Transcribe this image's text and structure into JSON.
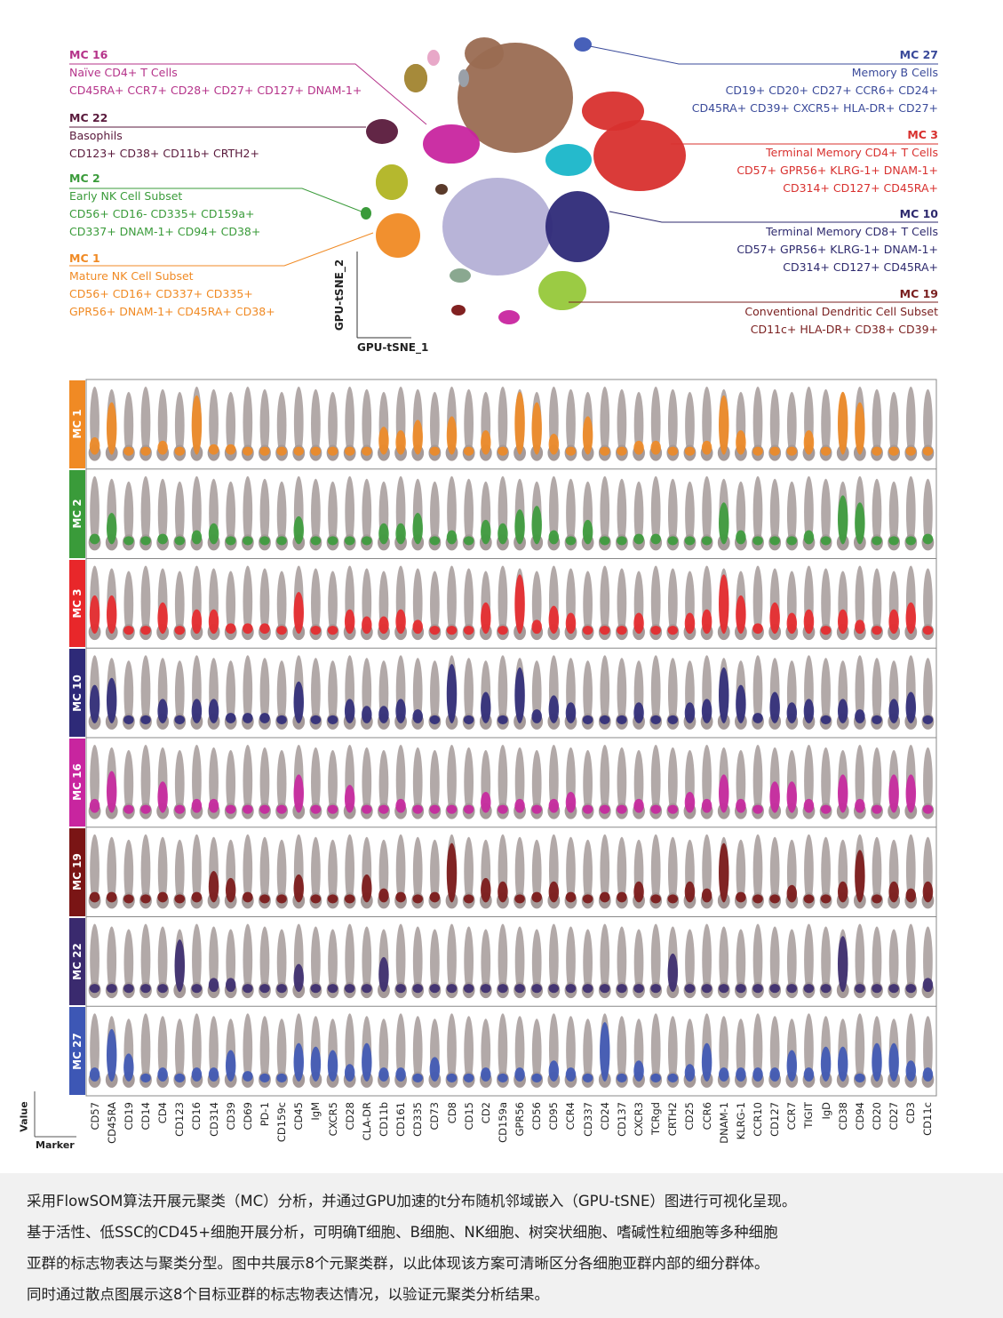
{
  "tsne": {
    "xlabel": "GPU-tSNE_1",
    "ylabel": "GPU-tSNE_2",
    "annotations_left": [
      {
        "id": "MC 16",
        "lines": [
          "Naïve CD4+ T Cells",
          "CD45RA+ CCR7+ CD28+ CD27+ CD127+ DNAM-1+"
        ],
        "title_color": "#b5338a",
        "color": "#b5338a"
      },
      {
        "id": "MC 22",
        "lines": [
          "Basophils",
          "CD123+ CD38+ CD11b+ CRTH2+"
        ],
        "title_color": "#5a1a3c",
        "color": "#5a1a3c"
      },
      {
        "id": "MC 2",
        "lines": [
          "Early NK Cell Subset",
          "CD56+ CD16- CD335+ CD159a+",
          "CD337+ DNAM-1+ CD94+ CD38+"
        ],
        "title_color": "#3a9b3a",
        "color": "#3a9b3a"
      },
      {
        "id": "MC 1",
        "lines": [
          "Mature NK Cell Subset",
          "CD56+ CD16+ CD337+ CD335+",
          "GPR56+ DNAM-1+ CD45RA+ CD38+"
        ],
        "title_color": "#f08a24",
        "color": "#f08a24"
      }
    ],
    "annotations_right": [
      {
        "id": "MC 27",
        "lines": [
          "Memory B Cells",
          "CD19+ CD20+ CD27+ CCR6+ CD24+",
          "CD45RA+ CD39+ CXCR5+ HLA-DR+ CD27+"
        ],
        "title_color": "#3a4a9a",
        "color": "#3a4a9a"
      },
      {
        "id": "MC 3",
        "lines": [
          "Terminal Memory CD4+ T Cells",
          "CD57+ GPR56+ KLRG-1+ DNAM-1+",
          "CD314+ CD127+ CD45RA+"
        ],
        "title_color": "#d8302e",
        "color": "#d8302e"
      },
      {
        "id": "MC 10",
        "lines": [
          "Terminal Memory CD8+ T Cells",
          "CD57+ GPR56+ KLRG-1+ DNAM-1+",
          "CD314+ CD127+ CD45RA+"
        ],
        "title_color": "#2e2a6e",
        "color": "#2e2a6e"
      },
      {
        "id": "MC 19",
        "lines": [
          "Conventional Dendritic Cell Subset",
          "CD11c+ HLA-DR+ CD38+ CD39+"
        ],
        "title_color": "#7a1f1f",
        "color": "#7a1f1f"
      }
    ]
  },
  "chart_data": {
    "type": "scatter",
    "xlabel": "Marker",
    "ylabel": "Value",
    "background_color": "#a59a99",
    "markers": [
      "CD57",
      "CD45RA",
      "CD19",
      "CD14",
      "CD4",
      "CD123",
      "CD16",
      "CD314",
      "CD39",
      "CD69",
      "PD-1",
      "CD159c",
      "CD45",
      "IgM",
      "CXCR5",
      "CD28",
      "CLA-DR",
      "CD11b",
      "CD161",
      "CD335",
      "CD73",
      "CD8",
      "CD15",
      "CD2",
      "CD159a",
      "GPR56",
      "CD56",
      "CD95",
      "CCR4",
      "CD337",
      "CD24",
      "CD137",
      "CXCR3",
      "TCRgd",
      "CRTH2",
      "CD25",
      "CCR6",
      "DNAM-1",
      "KLRG-1",
      "CCR10",
      "CD127",
      "CCR7",
      "TIGIT",
      "IgD",
      "CD38",
      "CD94",
      "CD20",
      "CD27",
      "CD3",
      "CD11c"
    ],
    "series": [
      {
        "name": "MC 1",
        "color": "#f08a24",
        "values": [
          0.25,
          0.75,
          0.1,
          0.1,
          0.2,
          0.1,
          0.85,
          0.15,
          0.15,
          0.1,
          0.1,
          0.1,
          0.1,
          0.1,
          0.1,
          0.1,
          0.1,
          0.4,
          0.35,
          0.5,
          0.1,
          0.55,
          0.1,
          0.35,
          0.1,
          0.9,
          0.75,
          0.3,
          0.1,
          0.55,
          0.1,
          0.1,
          0.2,
          0.2,
          0.1,
          0.1,
          0.2,
          0.85,
          0.35,
          0.1,
          0.1,
          0.1,
          0.35,
          0.1,
          0.9,
          0.75,
          0.1,
          0.1,
          0.1,
          0.1
        ]
      },
      {
        "name": "MC 2",
        "color": "#3a9b3a",
        "values": [
          0.15,
          0.45,
          0.1,
          0.1,
          0.15,
          0.1,
          0.2,
          0.3,
          0.1,
          0.1,
          0.1,
          0.1,
          0.4,
          0.1,
          0.1,
          0.1,
          0.1,
          0.3,
          0.3,
          0.45,
          0.1,
          0.2,
          0.1,
          0.35,
          0.3,
          0.5,
          0.55,
          0.2,
          0.1,
          0.35,
          0.1,
          0.1,
          0.15,
          0.15,
          0.1,
          0.1,
          0.1,
          0.6,
          0.2,
          0.1,
          0.1,
          0.1,
          0.2,
          0.1,
          0.7,
          0.6,
          0.1,
          0.1,
          0.1,
          0.15
        ]
      },
      {
        "name": "MC 3",
        "color": "#e8272a",
        "values": [
          0.55,
          0.55,
          0.1,
          0.1,
          0.45,
          0.1,
          0.35,
          0.35,
          0.15,
          0.15,
          0.15,
          0.1,
          0.6,
          0.1,
          0.1,
          0.35,
          0.25,
          0.25,
          0.35,
          0.2,
          0.1,
          0.1,
          0.1,
          0.45,
          0.1,
          0.85,
          0.2,
          0.4,
          0.3,
          0.1,
          0.1,
          0.1,
          0.3,
          0.1,
          0.1,
          0.3,
          0.35,
          0.85,
          0.55,
          0.15,
          0.45,
          0.3,
          0.35,
          0.1,
          0.35,
          0.2,
          0.1,
          0.35,
          0.45,
          0.1
        ]
      },
      {
        "name": "MC 10",
        "color": "#2e2a78",
        "values": [
          0.55,
          0.65,
          0.1,
          0.1,
          0.35,
          0.1,
          0.35,
          0.35,
          0.15,
          0.15,
          0.15,
          0.1,
          0.6,
          0.1,
          0.1,
          0.35,
          0.25,
          0.25,
          0.35,
          0.2,
          0.1,
          0.85,
          0.1,
          0.45,
          0.1,
          0.8,
          0.2,
          0.4,
          0.3,
          0.1,
          0.1,
          0.1,
          0.3,
          0.1,
          0.1,
          0.3,
          0.35,
          0.8,
          0.55,
          0.15,
          0.45,
          0.3,
          0.35,
          0.1,
          0.35,
          0.2,
          0.1,
          0.35,
          0.45,
          0.1
        ]
      },
      {
        "name": "MC 16",
        "color": "#c8259f",
        "values": [
          0.2,
          0.6,
          0.1,
          0.1,
          0.45,
          0.1,
          0.2,
          0.2,
          0.1,
          0.1,
          0.1,
          0.1,
          0.55,
          0.1,
          0.1,
          0.4,
          0.1,
          0.1,
          0.2,
          0.1,
          0.1,
          0.1,
          0.1,
          0.3,
          0.1,
          0.2,
          0.1,
          0.2,
          0.3,
          0.1,
          0.1,
          0.1,
          0.2,
          0.1,
          0.1,
          0.3,
          0.2,
          0.55,
          0.2,
          0.1,
          0.45,
          0.45,
          0.2,
          0.1,
          0.55,
          0.2,
          0.1,
          0.55,
          0.55,
          0.1
        ]
      },
      {
        "name": "MC 19",
        "color": "#7a1515",
        "values": [
          0.15,
          0.15,
          0.1,
          0.1,
          0.15,
          0.1,
          0.15,
          0.45,
          0.35,
          0.15,
          0.1,
          0.1,
          0.4,
          0.1,
          0.1,
          0.1,
          0.4,
          0.2,
          0.15,
          0.1,
          0.15,
          0.85,
          0.1,
          0.35,
          0.3,
          0.1,
          0.15,
          0.3,
          0.15,
          0.1,
          0.15,
          0.15,
          0.3,
          0.1,
          0.1,
          0.3,
          0.2,
          0.85,
          0.15,
          0.1,
          0.1,
          0.25,
          0.1,
          0.1,
          0.3,
          0.75,
          0.1,
          0.3,
          0.2,
          0.3
        ]
      },
      {
        "name": "MC 22",
        "color": "#3a2a6e",
        "values": [
          0.1,
          0.1,
          0.1,
          0.1,
          0.1,
          0.75,
          0.1,
          0.2,
          0.2,
          0.1,
          0.1,
          0.1,
          0.4,
          0.1,
          0.1,
          0.1,
          0.1,
          0.5,
          0.1,
          0.1,
          0.1,
          0.1,
          0.1,
          0.1,
          0.1,
          0.1,
          0.1,
          0.1,
          0.1,
          0.1,
          0.1,
          0.1,
          0.1,
          0.1,
          0.55,
          0.1,
          0.1,
          0.1,
          0.1,
          0.1,
          0.1,
          0.1,
          0.1,
          0.1,
          0.8,
          0.1,
          0.1,
          0.1,
          0.1,
          0.2
        ]
      },
      {
        "name": "MC 27",
        "color": "#3d57b5",
        "values": [
          0.2,
          0.75,
          0.4,
          0.1,
          0.2,
          0.1,
          0.2,
          0.2,
          0.45,
          0.15,
          0.1,
          0.1,
          0.55,
          0.5,
          0.45,
          0.25,
          0.55,
          0.2,
          0.2,
          0.1,
          0.35,
          0.1,
          0.1,
          0.2,
          0.1,
          0.2,
          0.1,
          0.3,
          0.2,
          0.1,
          0.85,
          0.1,
          0.3,
          0.1,
          0.1,
          0.25,
          0.55,
          0.2,
          0.2,
          0.2,
          0.2,
          0.45,
          0.2,
          0.5,
          0.5,
          0.1,
          0.55,
          0.55,
          0.3,
          0.2
        ]
      }
    ]
  },
  "tsne_clusters": [
    {
      "name": "MC 16",
      "color": "#c8259f"
    },
    {
      "name": "MC 22",
      "color": "#5a1a3c"
    },
    {
      "name": "MC 2",
      "color": "#9fb02a"
    },
    {
      "name": "MC 1",
      "color": "#f08a24"
    },
    {
      "name": "MC 27",
      "color": "#3d57b5"
    },
    {
      "name": "MC 3",
      "color": "#d8302e"
    },
    {
      "name": "MC 10",
      "color": "#2e2a78"
    },
    {
      "name": "MC 19",
      "color": "#7a1515"
    },
    {
      "name": "brown-main",
      "color": "#9a6b52"
    },
    {
      "name": "lavender-main",
      "color": "#b4b0d6"
    },
    {
      "name": "lime",
      "color": "#96c83a"
    },
    {
      "name": "cyan",
      "color": "#19b6c9"
    }
  ],
  "caption": {
    "lines": [
      "采用FlowSOM算法开展元聚类（MC）分析，并通过GPU加速的t分布随机邻域嵌入（GPU-tSNE）图进行可视化呈现。",
      "基于活性、低SSC的CD45+细胞开展分析，可明确T细胞、B细胞、NK细胞、树突状细胞、嗜碱性粒细胞等多种细胞",
      "亚群的标志物表达与聚类分型。图中共展示8个元聚类群，以此体现该方案可清晰区分各细胞亚群内部的细分群体。",
      "同时通过散点图展示这8个目标亚群的标志物表达情况，以验证元聚类分析结果。"
    ]
  }
}
